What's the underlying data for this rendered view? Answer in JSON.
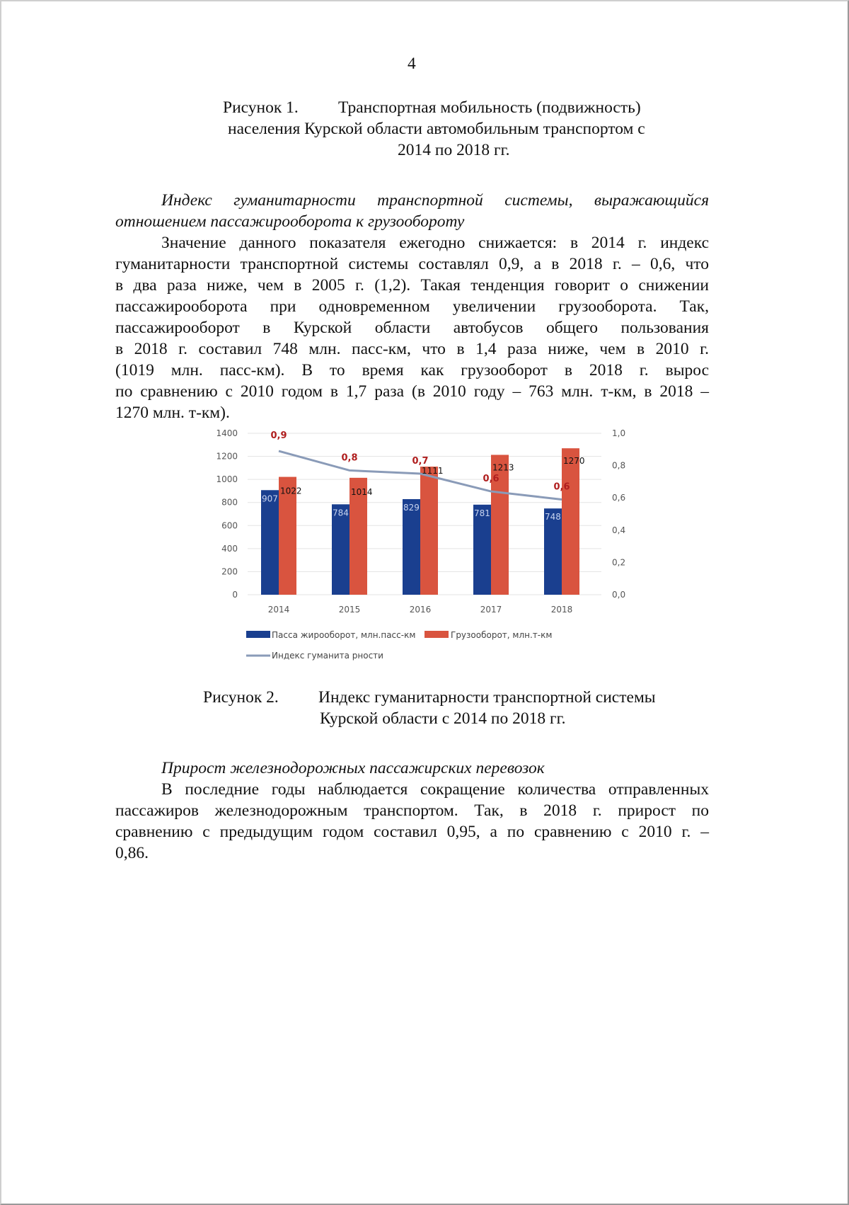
{
  "page_number": "4",
  "figure1_caption": {
    "label": "Рисунок 1.",
    "lines": [
      "Транспортная мобильность (подвижность)",
      "населения Курской области автомобильным транспортом с",
      "2014 по 2018 гг."
    ]
  },
  "section1": {
    "heading_lines": [
      "Индекс гуманитарности транспортной системы, выражающийся",
      "отношением пассажирооборота к грузообороту"
    ],
    "paragraph_lines": [
      "Значение данного показателя ежегодно снижается: в 2014 г. индекс",
      "гуманитарности транспортной системы составлял 0,9, а в 2018 г. – 0,6, что",
      "в два раза ниже, чем в 2005 г. (1,2). Такая тенденция говорит о снижении",
      "пассажирооборота при одновременном увеличении грузооборота. Так,",
      "пассажирооборот в Курской области автобусов общего пользования",
      "в 2018 г. составил 748 млн. пасс-км, что в 1,4 раза ниже, чем в 2010 г.",
      "(1019 млн. пасс-км). В то время как грузооборот в 2018 г. вырос",
      "по сравнению с 2010 годом в 1,7 раза (в 2010 году – 763 млн. т-км, в 2018 –",
      "1270 млн. т-км)."
    ]
  },
  "chart_data": {
    "type": "bar",
    "categories": [
      "2014",
      "2015",
      "2016",
      "2017",
      "2018"
    ],
    "series": [
      {
        "name": "Пасса жирооборот, млн.пасс-км",
        "kind": "bar",
        "axis": "left",
        "color": "#1a3f8f",
        "values": [
          907,
          784,
          829,
          781,
          748
        ],
        "labels": [
          "907",
          "784",
          "829",
          "781",
          "748"
        ]
      },
      {
        "name": "Грузооборот, млн.т-км",
        "kind": "bar",
        "axis": "left",
        "color": "#d9543f",
        "values": [
          1022,
          1014,
          1111,
          1213,
          1270
        ],
        "labels": [
          "1022",
          "1014",
          "1111",
          "1213",
          "1270"
        ]
      },
      {
        "name": "Индекс гуманита рности",
        "kind": "line",
        "axis": "right",
        "color": "#8a9bb8",
        "values": [
          0.89,
          0.77,
          0.75,
          0.64,
          0.59
        ],
        "labels": [
          "0,9",
          "0,8",
          "0,7",
          "0,6",
          "0,6"
        ]
      }
    ],
    "y_left": {
      "range": [
        0,
        1400
      ],
      "ticks": [
        "0",
        "200",
        "400",
        "600",
        "800",
        "1000",
        "1200",
        "1400"
      ]
    },
    "y_right": {
      "range": [
        0,
        1.0
      ],
      "ticks": [
        "0,0",
        "0,2",
        "0,4",
        "0,6",
        "0,8",
        "1,0"
      ]
    },
    "grid": true,
    "legend_position": "bottom",
    "index_label_color": "#b01e1e"
  },
  "figure2_caption": {
    "label": "Рисунок 2.",
    "lines": [
      "Индекс гуманитарности транспортной системы",
      "Курской области с 2014 по 2018 гг."
    ]
  },
  "section2": {
    "heading": "Прирост железнодорожных пассажирских перевозок",
    "paragraph_lines": [
      "В последние годы наблюдается сокращение количества отправленных",
      "пассажиров железнодорожным транспортом. Так, в 2018 г. прирост по",
      "сравнению с предыдущим годом составил 0,95, а по сравнению с 2010 г. –",
      "0,86."
    ]
  }
}
